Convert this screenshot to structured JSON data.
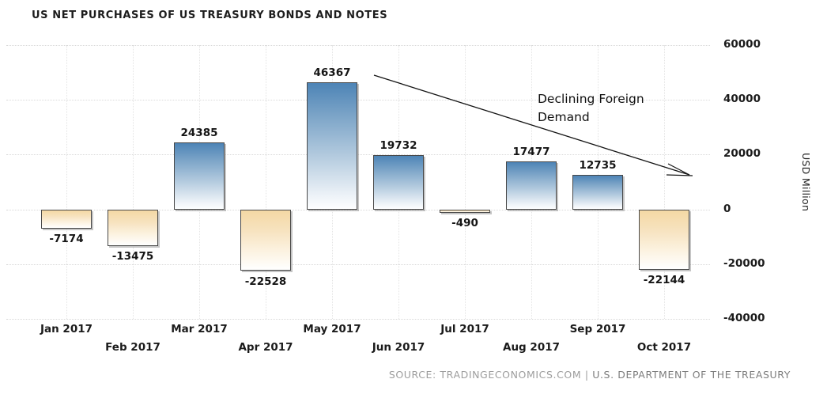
{
  "title": "US NET PURCHASES OF US TREASURY BONDS AND NOTES",
  "chart_data": {
    "type": "bar",
    "title": "US NET PURCHASES OF US TREASURY BONDS AND NOTES",
    "categories": [
      "Jan 2017",
      "Feb 2017",
      "Mar 2017",
      "Apr 2017",
      "May 2017",
      "Jun 2017",
      "Jul 2017",
      "Aug 2017",
      "Sep 2017",
      "Oct 2017"
    ],
    "values": [
      -7174,
      -13475,
      24385,
      -22528,
      46367,
      19732,
      -490,
      17477,
      12735,
      -22144
    ],
    "bar_labels": [
      "-7174",
      "-13475",
      "24385",
      "-22528",
      "46367",
      "19732",
      "-490",
      "17477",
      "12735",
      "-22144"
    ],
    "xlabel": "",
    "ylabel": "USD Million",
    "ylim": [
      -40000,
      60000
    ],
    "yticks": [
      60000,
      40000,
      20000,
      0,
      -20000,
      -40000
    ],
    "ytick_labels": [
      "60000",
      "40000",
      "20000",
      "0",
      "-20000",
      "-40000"
    ],
    "grid": true,
    "legend": false,
    "colors": {
      "positive_bar_top": "#4d84b6",
      "positive_bar_bottom": "#fdfeff",
      "negative_bar_top": "#f4d8a4",
      "negative_bar_bottom": "#ffffff",
      "bar_border": "#484848",
      "gridline": "#d9d9d9",
      "text": "#1b1b1b"
    },
    "annotation": {
      "line1": "Declining Foreign",
      "line2": "Demand"
    }
  },
  "source": {
    "label": "SOURCE: TRADINGECONOMICS.COM",
    "separator": "|",
    "org": "U.S. DEPARTMENT OF THE TREASURY"
  }
}
